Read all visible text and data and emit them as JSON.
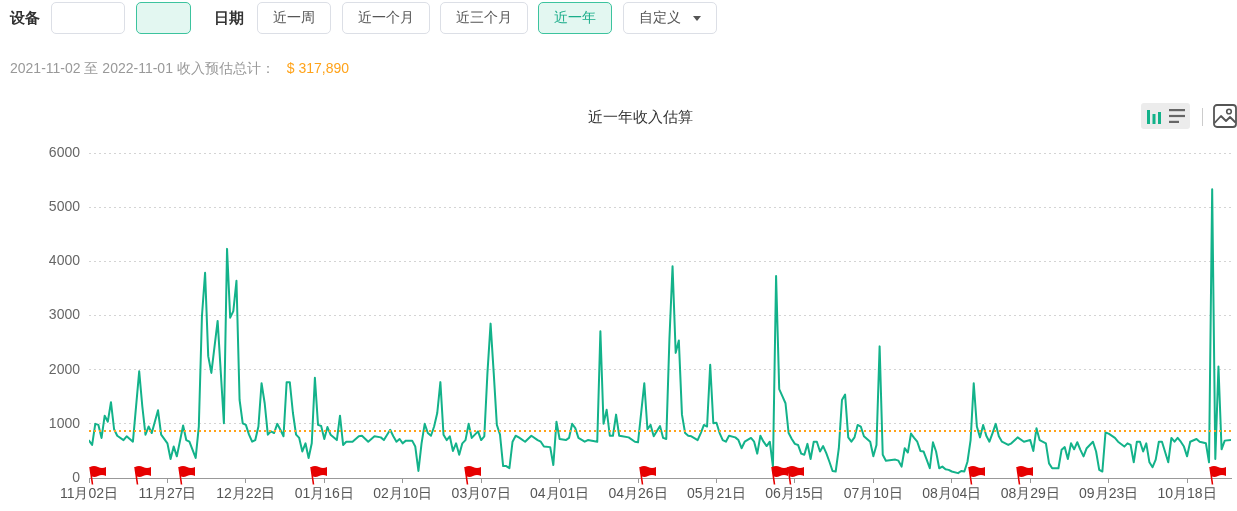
{
  "chart_data": {
    "type": "line",
    "title": "近一年收入估算",
    "subtitle": "2021-11-02 至 2022-11-01 收入预估总计：",
    "annotations": [
      "设备",
      "日期",
      "近一周",
      "近一个月",
      "近三个月",
      "近一年",
      "自定义",
      "$ 317,890"
    ],
    "x": [
      "2021-11-02",
      "2021-11-03",
      "2021-11-04",
      "2021-11-05",
      "2021-11-06",
      "2021-11-07",
      "2021-11-08",
      "2021-11-09",
      "2021-11-10",
      "2021-11-11",
      "2021-11-13",
      "2021-11-14",
      "2021-11-16",
      "2021-11-18",
      "2021-11-19",
      "2021-11-20",
      "2021-11-21",
      "2021-11-22",
      "2021-11-24",
      "2021-11-25",
      "2021-11-27",
      "2021-11-28",
      "2021-11-29",
      "2021-11-30",
      "2021-12-02",
      "2021-12-03",
      "2021-12-04",
      "2021-12-06",
      "2021-12-07",
      "2021-12-08",
      "2021-12-09",
      "2021-12-10",
      "2021-12-11",
      "2021-12-13",
      "2021-12-15",
      "2021-12-16",
      "2021-12-17",
      "2021-12-18",
      "2021-12-19",
      "2021-12-20",
      "2021-12-21",
      "2021-12-22",
      "2021-12-23",
      "2021-12-24",
      "2021-12-25",
      "2021-12-26",
      "2021-12-27",
      "2021-12-28",
      "2021-12-29",
      "2021-12-30",
      "2021-12-31",
      "2022-01-01",
      "2022-01-02",
      "2022-01-03",
      "2022-01-04",
      "2022-01-05",
      "2022-01-06",
      "2022-01-07",
      "2022-01-08",
      "2022-01-09",
      "2022-01-10",
      "2022-01-11",
      "2022-01-12",
      "2022-01-13",
      "2022-01-14",
      "2022-01-15",
      "2022-01-16",
      "2022-01-17",
      "2022-01-18",
      "2022-01-20",
      "2022-01-21",
      "2022-01-22",
      "2022-01-23",
      "2022-01-25",
      "2022-01-27",
      "2022-01-28",
      "2022-01-30",
      "2022-02-01",
      "2022-02-03",
      "2022-02-04",
      "2022-02-06",
      "2022-02-07",
      "2022-02-08",
      "2022-02-09",
      "2022-02-10",
      "2022-02-11",
      "2022-02-13",
      "2022-02-14",
      "2022-02-15",
      "2022-02-16",
      "2022-02-17",
      "2022-02-18",
      "2022-02-19",
      "2022-02-20",
      "2022-02-21",
      "2022-02-22",
      "2022-02-23",
      "2022-02-24",
      "2022-02-25",
      "2022-02-26",
      "2022-02-27",
      "2022-02-28",
      "2022-03-01",
      "2022-03-02",
      "2022-03-03",
      "2022-03-04",
      "2022-03-06",
      "2022-03-07",
      "2022-03-08",
      "2022-03-09",
      "2022-03-10",
      "2022-03-11",
      "2022-03-12",
      "2022-03-13",
      "2022-03-14",
      "2022-03-15",
      "2022-03-16",
      "2022-03-17",
      "2022-03-18",
      "2022-03-19",
      "2022-03-21",
      "2022-03-23",
      "2022-03-25",
      "2022-03-26",
      "2022-03-27",
      "2022-03-29",
      "2022-03-30",
      "2022-03-31",
      "2022-04-01",
      "2022-04-03",
      "2022-04-04",
      "2022-04-05",
      "2022-04-06",
      "2022-04-07",
      "2022-04-09",
      "2022-04-10",
      "2022-04-13",
      "2022-04-14",
      "2022-04-15",
      "2022-04-16",
      "2022-04-17",
      "2022-04-18",
      "2022-04-19",
      "2022-04-20",
      "2022-04-21",
      "2022-04-23",
      "2022-04-25",
      "2022-04-26",
      "2022-04-28",
      "2022-04-29",
      "2022-04-30",
      "2022-05-01",
      "2022-05-03",
      "2022-05-04",
      "2022-05-05",
      "2022-05-06",
      "2022-05-07",
      "2022-05-08",
      "2022-05-09",
      "2022-05-10",
      "2022-05-11",
      "2022-05-12",
      "2022-05-13",
      "2022-05-15",
      "2022-05-16",
      "2022-05-17",
      "2022-05-18",
      "2022-05-19",
      "2022-05-20",
      "2022-05-21",
      "2022-05-22",
      "2022-05-23",
      "2022-05-24",
      "2022-05-25",
      "2022-05-27",
      "2022-05-28",
      "2022-05-29",
      "2022-05-30",
      "2022-06-01",
      "2022-06-02",
      "2022-06-03",
      "2022-06-04",
      "2022-06-05",
      "2022-06-06",
      "2022-06-07",
      "2022-06-08",
      "2022-06-09",
      "2022-06-10",
      "2022-06-11",
      "2022-06-12",
      "2022-06-13",
      "2022-06-14",
      "2022-06-15",
      "2022-06-16",
      "2022-06-17",
      "2022-06-18",
      "2022-06-19",
      "2022-06-20",
      "2022-06-21",
      "2022-06-22",
      "2022-06-23",
      "2022-06-24",
      "2022-06-25",
      "2022-06-26",
      "2022-06-27",
      "2022-06-28",
      "2022-06-29",
      "2022-06-30",
      "2022-07-01",
      "2022-07-02",
      "2022-07-03",
      "2022-07-04",
      "2022-07-05",
      "2022-07-06",
      "2022-07-07",
      "2022-07-09",
      "2022-07-10",
      "2022-07-11",
      "2022-07-12",
      "2022-07-13",
      "2022-07-14",
      "2022-07-17",
      "2022-07-18",
      "2022-07-19",
      "2022-07-20",
      "2022-07-21",
      "2022-07-22",
      "2022-07-23",
      "2022-07-24",
      "2022-07-25",
      "2022-07-26",
      "2022-07-27",
      "2022-07-28",
      "2022-07-29",
      "2022-07-30",
      "2022-07-31",
      "2022-08-01",
      "2022-08-02",
      "2022-08-03",
      "2022-08-04",
      "2022-08-06",
      "2022-08-07",
      "2022-08-08",
      "2022-08-09",
      "2022-08-10",
      "2022-08-11",
      "2022-08-12",
      "2022-08-13",
      "2022-08-14",
      "2022-08-15",
      "2022-08-16",
      "2022-08-17",
      "2022-08-18",
      "2022-08-19",
      "2022-08-20",
      "2022-08-22",
      "2022-08-23",
      "2022-08-25",
      "2022-08-27",
      "2022-08-29",
      "2022-08-30",
      "2022-08-31",
      "2022-09-01",
      "2022-09-03",
      "2022-09-04",
      "2022-09-05",
      "2022-09-07",
      "2022-09-08",
      "2022-09-09",
      "2022-09-10",
      "2022-09-11",
      "2022-09-12",
      "2022-09-13",
      "2022-09-14",
      "2022-09-15",
      "2022-09-16",
      "2022-09-17",
      "2022-09-18",
      "2022-09-19",
      "2022-09-20",
      "2022-09-21",
      "2022-09-22",
      "2022-09-23",
      "2022-09-25",
      "2022-09-26",
      "2022-09-28",
      "2022-09-29",
      "2022-09-30",
      "2022-10-01",
      "2022-10-02",
      "2022-10-03",
      "2022-10-04",
      "2022-10-05",
      "2022-10-06",
      "2022-10-07",
      "2022-10-08",
      "2022-10-09",
      "2022-10-10",
      "2022-10-12",
      "2022-10-13",
      "2022-10-14",
      "2022-10-15",
      "2022-10-16",
      "2022-10-17",
      "2022-10-18",
      "2022-10-19",
      "2022-10-21",
      "2022-10-22",
      "2022-10-24",
      "2022-10-25",
      "2022-10-26",
      "2022-10-27",
      "2022-10-28",
      "2022-10-29",
      "2022-10-30",
      "2022-11-01"
    ],
    "values": [
      690,
      610,
      1000,
      980,
      740,
      1150,
      1040,
      1400,
      900,
      780,
      700,
      770,
      670,
      1970,
      1320,
      800,
      950,
      830,
      1250,
      800,
      640,
      350,
      580,
      400,
      970,
      700,
      670,
      370,
      950,
      2990,
      3790,
      2250,
      1940,
      2900,
      1010,
      4230,
      2960,
      3080,
      3640,
      1440,
      1010,
      980,
      800,
      670,
      700,
      950,
      1750,
      1380,
      800,
      860,
      830,
      1000,
      890,
      770,
      1770,
      1770,
      1200,
      800,
      740,
      490,
      640,
      370,
      640,
      1850,
      980,
      960,
      720,
      940,
      800,
      700,
      1150,
      610,
      670,
      670,
      770,
      780,
      670,
      770,
      750,
      700,
      890,
      770,
      670,
      720,
      640,
      690,
      690,
      580,
      130,
      640,
      1000,
      830,
      780,
      950,
      1200,
      1770,
      800,
      700,
      770,
      500,
      640,
      430,
      640,
      700,
      1000,
      740,
      860,
      700,
      770,
      1940,
      2850,
      1940,
      980,
      800,
      220,
      220,
      180,
      670,
      780,
      750,
      670,
      780,
      700,
      670,
      580,
      570,
      240,
      1040,
      720,
      700,
      740,
      1000,
      920,
      740,
      670,
      700,
      670,
      2710,
      1000,
      1260,
      780,
      780,
      1170,
      780,
      770,
      750,
      670,
      660,
      1750,
      900,
      980,
      770,
      960,
      740,
      720,
      2560,
      3910,
      2310,
      2540,
      1170,
      830,
      780,
      770,
      700,
      830,
      980,
      950,
      2090,
      1010,
      1020,
      830,
      700,
      670,
      780,
      750,
      700,
      550,
      670,
      740,
      670,
      450,
      780,
      670,
      590,
      670,
      210,
      3730,
      1640,
      1510,
      1380,
      830,
      720,
      630,
      610,
      450,
      430,
      630,
      350,
      670,
      670,
      490,
      590,
      460,
      300,
      130,
      120,
      550,
      1440,
      1540,
      750,
      670,
      750,
      980,
      950,
      770,
      670,
      400,
      610,
      2430,
      430,
      320,
      340,
      320,
      210,
      550,
      470,
      820,
      740,
      670,
      500,
      490,
      340,
      180,
      660,
      490,
      180,
      210,
      160,
      150,
      120,
      90,
      130,
      120,
      300,
      700,
      1750,
      950,
      750,
      980,
      780,
      670,
      830,
      1000,
      770,
      670,
      610,
      640,
      750,
      670,
      700,
      500,
      920,
      700,
      640,
      270,
      180,
      180,
      520,
      570,
      350,
      640,
      530,
      660,
      520,
      400,
      550,
      610,
      670,
      490,
      150,
      120,
      840,
      820,
      740,
      670,
      580,
      640,
      610,
      290,
      670,
      670,
      490,
      640,
      290,
      200,
      340,
      670,
      670,
      290,
      740,
      670,
      740,
      670,
      580,
      400,
      670,
      720,
      670,
      640,
      290,
      5330,
      350,
      2060,
      530,
      690,
      700
    ],
    "color": "#13b28a",
    "xlim": [
      "2021-11-02",
      "2022-11-01"
    ],
    "xticks": [
      {
        "value": "2021-11-02",
        "label": "11月02日"
      },
      {
        "value": "2021-11-27",
        "label": "11月27日"
      },
      {
        "value": "2021-12-22",
        "label": "12月22日"
      },
      {
        "value": "2022-01-16",
        "label": "01月16日"
      },
      {
        "value": "2022-02-10",
        "label": "02月10日"
      },
      {
        "value": "2022-03-07",
        "label": "03月07日"
      },
      {
        "value": "2022-04-01",
        "label": "04月01日"
      },
      {
        "value": "2022-04-26",
        "label": "04月26日"
      },
      {
        "value": "2022-05-21",
        "label": "05月21日"
      },
      {
        "value": "2022-06-15",
        "label": "06月15日"
      },
      {
        "value": "2022-07-10",
        "label": "07月10日"
      },
      {
        "value": "2022-08-04",
        "label": "08月04日"
      },
      {
        "value": "2022-08-29",
        "label": "08月29日"
      },
      {
        "value": "2022-09-23",
        "label": "09月23日"
      },
      {
        "value": "2022-10-18",
        "label": "10月18日"
      }
    ],
    "ylim": [
      0,
      6000
    ],
    "yticks": [
      0,
      1000,
      2000,
      3000,
      4000,
      5000,
      6000
    ],
    "grid": "y",
    "ref_lines": [
      {
        "axis": "y",
        "value": 870,
        "color": "#ffa31a",
        "line_style": "dotted"
      }
    ]
  }
}
